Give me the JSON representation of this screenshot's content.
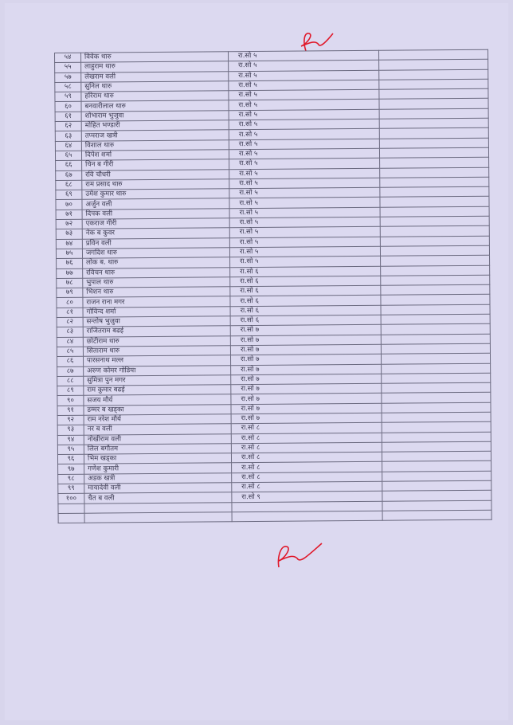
{
  "table": {
    "rows": [
      {
        "num": "५४",
        "name": "विवेक थारु",
        "ward": "रा.सो ५"
      },
      {
        "num": "५५",
        "name": "लाहुराम थारु",
        "ward": "रा.सो ५"
      },
      {
        "num": "५७",
        "name": "लेखराम वली",
        "ward": "रा.सो ५"
      },
      {
        "num": "५८",
        "name": "सुनिल थारु",
        "ward": "रा.सो ५"
      },
      {
        "num": "५९",
        "name": "हरिराम थारु",
        "ward": "रा.सो ५"
      },
      {
        "num": "६०",
        "name": "बनवारीलाल थारु",
        "ward": "रा.सो ५"
      },
      {
        "num": "६१",
        "name": "शोभाराम भुजुवा",
        "ward": "रा.सो ५"
      },
      {
        "num": "६२",
        "name": "मोहित भण्डारी",
        "ward": "रा.सो ५"
      },
      {
        "num": "६३",
        "name": "तप्पराज खत्री",
        "ward": "रा.सो ५"
      },
      {
        "num": "६४",
        "name": "विशाल थारु",
        "ward": "रा.सो ५"
      },
      {
        "num": "६५",
        "name": "दिपेश शर्मा",
        "ward": "रा.सो ५"
      },
      {
        "num": "६६",
        "name": "चिन ब गीरी",
        "ward": "रा.सो ५"
      },
      {
        "num": "६७",
        "name": "रवि चौधरी",
        "ward": "रा.सो ५"
      },
      {
        "num": "६८",
        "name": "राम प्रसाद थारु",
        "ward": "रा.सो ५"
      },
      {
        "num": "६९",
        "name": "उमेश कुमार थारु",
        "ward": "रा.सो ५"
      },
      {
        "num": "७०",
        "name": "अर्जुन वली",
        "ward": "रा.सो ५"
      },
      {
        "num": "७१",
        "name": "दिपक वली",
        "ward": "रा.सो ५"
      },
      {
        "num": "७२",
        "name": "एकराज गीरी",
        "ward": "रा.सो ५"
      },
      {
        "num": "७३",
        "name": "नेक ब कुवर",
        "ward": "रा.सो ५"
      },
      {
        "num": "७४",
        "name": "प्रविन वली",
        "ward": "रा.सो ५"
      },
      {
        "num": "७५",
        "name": "जगदिश थारु",
        "ward": "रा.सो ५"
      },
      {
        "num": "७६",
        "name": "लोक ब. थारु",
        "ward": "रा.सो ५"
      },
      {
        "num": "७७",
        "name": "रविचन थारु",
        "ward": "रा.सो ६"
      },
      {
        "num": "७८",
        "name": "भुपाल थारु",
        "ward": "रा.सो ६"
      },
      {
        "num": "७९",
        "name": "भिशन थारु",
        "ward": "रा.सो ६"
      },
      {
        "num": "८०",
        "name": "राजन राना मगर",
        "ward": "रा.सो ६"
      },
      {
        "num": "८१",
        "name": "गोविन्द शर्मा",
        "ward": "रा.सो ६"
      },
      {
        "num": "८२",
        "name": "सन्तोष भुजुवा",
        "ward": "रा.सो ६"
      },
      {
        "num": "८३",
        "name": "राजितराम बढई",
        "ward": "रा.सो ७"
      },
      {
        "num": "८४",
        "name": "छोटीराम थारु",
        "ward": "रा.सो ७"
      },
      {
        "num": "८५",
        "name": "सिताराम थारु",
        "ward": "रा.सो ७"
      },
      {
        "num": "८६",
        "name": "पारसनाथ मल्ल",
        "ward": "रा.सो ७"
      },
      {
        "num": "८७",
        "name": "अरुण कोमर गोडिया",
        "ward": "रा.सो ७"
      },
      {
        "num": "८८",
        "name": "सुमित्रा पुन मगर",
        "ward": "रा.सो ७"
      },
      {
        "num": "८९",
        "name": "राम कुमार बढई",
        "ward": "रा.सो ७"
      },
      {
        "num": "९०",
        "name": "सजय मौर्य",
        "ward": "रा.सो ७"
      },
      {
        "num": "९१",
        "name": "डम्मर ब खड्का",
        "ward": "रा.सो ७"
      },
      {
        "num": "९२",
        "name": "राम नरेश मौर्य",
        "ward": "रा.सो ७"
      },
      {
        "num": "९३",
        "name": "नर ब वली",
        "ward": "रा.सो ८"
      },
      {
        "num": "९४",
        "name": "नोखीराम वली",
        "ward": "रा.सो ८"
      },
      {
        "num": "९५",
        "name": "लिल बगौतम",
        "ward": "रा.सो ८"
      },
      {
        "num": "९६",
        "name": "भिम खड्का",
        "ward": "रा.सो ८"
      },
      {
        "num": "९७",
        "name": "गणेश कुमारी",
        "ward": "रा.सो ८"
      },
      {
        "num": "९८",
        "name": "अडक खत्री",
        "ward": "रा.सो ८"
      },
      {
        "num": "९९",
        "name": "मायादेवी वली",
        "ward": "रा.सो ८"
      },
      {
        "num": "१००",
        "name": "चैत ब वली",
        "ward": "रा.सो ९"
      }
    ],
    "empty_rows": 2
  },
  "colors": {
    "paper": "#dcd9f0",
    "ink": "#3a3950",
    "signature": "#e0182a"
  }
}
